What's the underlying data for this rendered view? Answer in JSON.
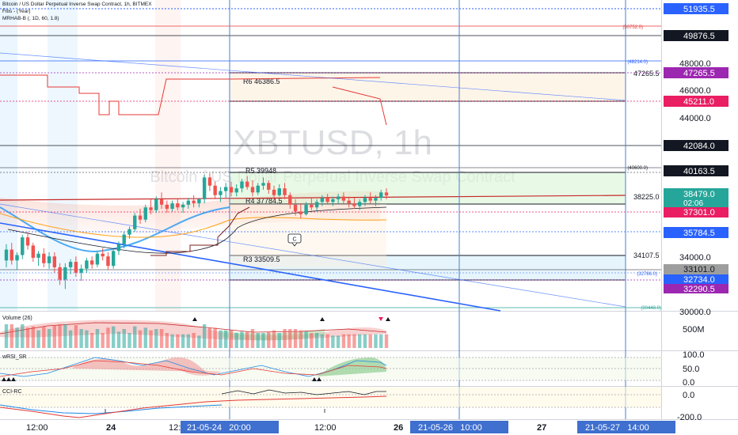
{
  "header": {
    "title_line": "Bitcoin / US Dollar Perpetual Inverse Swap Contract, 1h, BITMEX",
    "fibs_line": "Fibs - (Year)",
    "mrhab_line": "MRHAB-B (, 1D, 60, 1.8)"
  },
  "watermark": {
    "symbol": "XBTUSD, 1h",
    "description": "Bitcoin / US Dollar Perpetual Inverse Swap Contract"
  },
  "colors": {
    "up": "#26a69a",
    "down": "#ef5350",
    "pivot_box_line": "#131722",
    "fib_red": "#e53935",
    "fib_blue": "#2962ff",
    "vertical_line": "#4a7fd0",
    "label_purple": "#9c27b0",
    "label_pink": "#e91e63",
    "label_blue": "#2962ff",
    "label_dark": "#131722",
    "date_label_bg": "#3f6fcf"
  },
  "pivots": {
    "r6": "R6 46386.5",
    "r5": "R5 39948",
    "r4": "R4 37784.5",
    "r3": "R3 33509.5",
    "pivot_right_1": "47265.5",
    "pivot_right_2": "38225.0",
    "pivot_right_3": "34107.5"
  },
  "fib_labels": {
    "f1": "(50752.0)",
    "f2": "(48214.0)",
    "f3": "(40600.0)",
    "f4": "(32786.0)",
    "f5": "(30448.0)"
  },
  "price_axis": {
    "ticks": [
      "48000.0",
      "46000.0",
      "44000.0",
      "34000.0",
      "30000.0"
    ],
    "labels": {
      "l1": "51935.5",
      "l2": "49876.5",
      "l3": "47265.5",
      "l4": "45211.0",
      "l5": "42084.0",
      "l6": "40163.5",
      "l7_price": "38479.0",
      "l7_countdown": "02:06",
      "l8": "37301.0",
      "l9": "35784.5",
      "l10": "33101.0",
      "l11": "32734.0",
      "l12": "32290.5"
    }
  },
  "marker": "C",
  "volume_pane": {
    "title": "Volume (26)",
    "axis_label": "500M"
  },
  "wrsi_pane": {
    "title": "wRSI_SR",
    "ticks": [
      "100.0",
      "50.0",
      "0.0"
    ]
  },
  "cci_pane": {
    "title": "CCI-RC",
    "ticks": [
      "0.0",
      "-200.0"
    ]
  },
  "time_axis": {
    "labels": [
      "12:00",
      "24",
      "12:",
      "12:00",
      "26",
      "27"
    ],
    "highlight_labels": [
      "21-05-24   20:00",
      "21-05-26   10:00",
      "21-05-27   14:00"
    ]
  },
  "chart_data": {
    "type": "candlestick",
    "symbol": "XBTUSD",
    "interval": "1h",
    "ylim": [
      30000,
      52500
    ],
    "candles": [
      {
        "o": 33700,
        "h": 34900,
        "l": 33200,
        "c": 34500
      },
      {
        "o": 34500,
        "h": 35000,
        "l": 33400,
        "c": 33700
      },
      {
        "o": 33700,
        "h": 34300,
        "l": 33000,
        "c": 34100
      },
      {
        "o": 34100,
        "h": 35600,
        "l": 33800,
        "c": 35400
      },
      {
        "o": 35400,
        "h": 35800,
        "l": 34500,
        "c": 34800
      },
      {
        "o": 34800,
        "h": 35000,
        "l": 33600,
        "c": 33900
      },
      {
        "o": 33900,
        "h": 34400,
        "l": 33300,
        "c": 34200
      },
      {
        "o": 34200,
        "h": 34600,
        "l": 33200,
        "c": 33500
      },
      {
        "o": 33500,
        "h": 34300,
        "l": 33100,
        "c": 34000
      },
      {
        "o": 34000,
        "h": 34300,
        "l": 32800,
        "c": 33200
      },
      {
        "o": 33200,
        "h": 33500,
        "l": 31900,
        "c": 32300
      },
      {
        "o": 32300,
        "h": 33500,
        "l": 31600,
        "c": 33200
      },
      {
        "o": 33200,
        "h": 33800,
        "l": 32700,
        "c": 33600
      },
      {
        "o": 33600,
        "h": 34000,
        "l": 32500,
        "c": 32800
      },
      {
        "o": 32800,
        "h": 33400,
        "l": 32200,
        "c": 33100
      },
      {
        "o": 33100,
        "h": 33900,
        "l": 32800,
        "c": 33700
      },
      {
        "o": 33700,
        "h": 34000,
        "l": 33100,
        "c": 33400
      },
      {
        "o": 33400,
        "h": 34400,
        "l": 33200,
        "c": 34200
      },
      {
        "o": 34200,
        "h": 34600,
        "l": 33700,
        "c": 34000
      },
      {
        "o": 34000,
        "h": 34300,
        "l": 33000,
        "c": 33300
      },
      {
        "o": 33300,
        "h": 34500,
        "l": 33100,
        "c": 34400
      },
      {
        "o": 34400,
        "h": 35100,
        "l": 34100,
        "c": 34900
      },
      {
        "o": 34900,
        "h": 35800,
        "l": 34600,
        "c": 35600
      },
      {
        "o": 35600,
        "h": 36200,
        "l": 35300,
        "c": 36000
      },
      {
        "o": 36000,
        "h": 37200,
        "l": 35800,
        "c": 37000
      },
      {
        "o": 37000,
        "h": 37500,
        "l": 36400,
        "c": 36700
      },
      {
        "o": 36700,
        "h": 37800,
        "l": 36500,
        "c": 37600
      },
      {
        "o": 37600,
        "h": 38200,
        "l": 37100,
        "c": 37400
      },
      {
        "o": 37400,
        "h": 38400,
        "l": 37200,
        "c": 38200
      },
      {
        "o": 38200,
        "h": 38700,
        "l": 37500,
        "c": 37800
      },
      {
        "o": 37800,
        "h": 38100,
        "l": 37200,
        "c": 37500
      },
      {
        "o": 37500,
        "h": 38100,
        "l": 37300,
        "c": 37900
      },
      {
        "o": 37900,
        "h": 38200,
        "l": 37400,
        "c": 37600
      },
      {
        "o": 37600,
        "h": 38000,
        "l": 37200,
        "c": 37800
      },
      {
        "o": 37800,
        "h": 38300,
        "l": 37500,
        "c": 38100
      },
      {
        "o": 38100,
        "h": 38500,
        "l": 37600,
        "c": 37900
      },
      {
        "o": 37900,
        "h": 38300,
        "l": 37600,
        "c": 38200
      },
      {
        "o": 38200,
        "h": 40000,
        "l": 37900,
        "c": 39800
      },
      {
        "o": 39800,
        "h": 40100,
        "l": 38800,
        "c": 39200
      },
      {
        "o": 39200,
        "h": 39500,
        "l": 38200,
        "c": 38500
      },
      {
        "o": 38500,
        "h": 39100,
        "l": 38000,
        "c": 38800
      },
      {
        "o": 38800,
        "h": 39400,
        "l": 38300,
        "c": 39100
      },
      {
        "o": 39100,
        "h": 39500,
        "l": 38400,
        "c": 38700
      },
      {
        "o": 38700,
        "h": 39300,
        "l": 38400,
        "c": 39000
      },
      {
        "o": 39000,
        "h": 39700,
        "l": 38700,
        "c": 39500
      },
      {
        "o": 39500,
        "h": 39900,
        "l": 38900,
        "c": 39100
      },
      {
        "o": 39100,
        "h": 39600,
        "l": 38400,
        "c": 38700
      },
      {
        "o": 38700,
        "h": 39400,
        "l": 38500,
        "c": 39200
      },
      {
        "o": 39200,
        "h": 39800,
        "l": 38900,
        "c": 39400
      },
      {
        "o": 39400,
        "h": 39600,
        "l": 38600,
        "c": 38900
      },
      {
        "o": 38900,
        "h": 39200,
        "l": 38100,
        "c": 38500
      },
      {
        "o": 38500,
        "h": 39300,
        "l": 38400,
        "c": 39000
      },
      {
        "o": 39000,
        "h": 39400,
        "l": 38200,
        "c": 38500
      },
      {
        "o": 38500,
        "h": 38700,
        "l": 37500,
        "c": 37800
      },
      {
        "o": 37800,
        "h": 38200,
        "l": 37000,
        "c": 37300
      },
      {
        "o": 37300,
        "h": 37900,
        "l": 36800,
        "c": 37100
      },
      {
        "o": 37100,
        "h": 38000,
        "l": 37000,
        "c": 37800
      },
      {
        "o": 37800,
        "h": 38300,
        "l": 37400,
        "c": 37600
      },
      {
        "o": 37600,
        "h": 38200,
        "l": 37300,
        "c": 38000
      },
      {
        "o": 38000,
        "h": 38500,
        "l": 37700,
        "c": 38300
      },
      {
        "o": 38300,
        "h": 38600,
        "l": 37800,
        "c": 38000
      },
      {
        "o": 38000,
        "h": 38400,
        "l": 37700,
        "c": 38200
      },
      {
        "o": 38200,
        "h": 38600,
        "l": 37900,
        "c": 38400
      },
      {
        "o": 38400,
        "h": 38700,
        "l": 37900,
        "c": 38100
      },
      {
        "o": 38100,
        "h": 38400,
        "l": 37600,
        "c": 37900
      },
      {
        "o": 37900,
        "h": 38300,
        "l": 37500,
        "c": 37700
      },
      {
        "o": 37700,
        "h": 38200,
        "l": 37400,
        "c": 38000
      },
      {
        "o": 38000,
        "h": 38500,
        "l": 37700,
        "c": 38300
      },
      {
        "o": 38300,
        "h": 38700,
        "l": 37900,
        "c": 38100
      },
      {
        "o": 38100,
        "h": 38500,
        "l": 37700,
        "c": 38300
      },
      {
        "o": 38300,
        "h": 38900,
        "l": 38100,
        "c": 38700
      },
      {
        "o": 38700,
        "h": 39000,
        "l": 38200,
        "c": 38479
      }
    ],
    "horizontal_levels": [
      51935.5,
      49876.5,
      47265.5,
      45211.0,
      42084.0,
      40163.5,
      38225.0,
      37301.0,
      35784.5,
      34107.5,
      33101.0,
      32734.0,
      32290.5
    ],
    "volume_axis": "500M",
    "wrsi_range": [
      0,
      100
    ],
    "cci_range": [
      -200,
      0
    ]
  }
}
